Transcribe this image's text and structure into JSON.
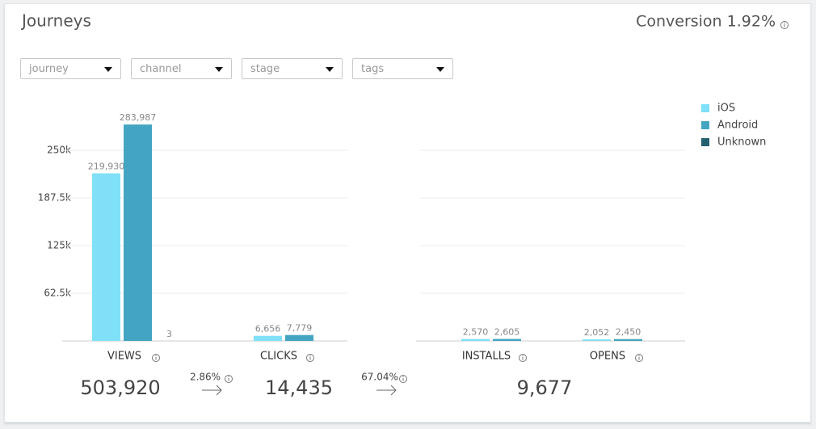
{
  "header": {
    "title": "Journeys",
    "conversion": "Conversion 1.92%"
  },
  "filters": [
    "journey",
    "channel",
    "stage",
    "tags"
  ],
  "chart_data": {
    "type": "bar",
    "categories": [
      "VIEWS",
      "CLICKS",
      "INSTALLS",
      "OPENS"
    ],
    "series": [
      {
        "name": "iOS",
        "color": "#7fe0f7",
        "values": [
          219930,
          6656,
          2570,
          2052
        ],
        "value_labels": [
          "219,930",
          "6,656",
          "2,570",
          "2,052"
        ]
      },
      {
        "name": "Android",
        "color": "#43a5c2",
        "values": [
          283987,
          7779,
          2605,
          2450
        ],
        "value_labels": [
          "283,987",
          "7,779",
          "2,605",
          "2,450"
        ]
      },
      {
        "name": "Unknown",
        "color": "#24606e",
        "values": [
          3,
          null,
          null,
          null
        ]
      }
    ],
    "ylim": [
      0,
      300000
    ],
    "yticks": [
      {
        "value": 62500,
        "label": "62.5k"
      },
      {
        "value": 125000,
        "label": "125k"
      },
      {
        "value": 187500,
        "label": "187.5k"
      },
      {
        "value": 250000,
        "label": "250k"
      }
    ],
    "grid": true,
    "legend": "top-right"
  },
  "funnel": {
    "totals": [
      "503,920",
      "14,435",
      "9,677"
    ],
    "rates": [
      "2.86%",
      "67.04%"
    ]
  }
}
